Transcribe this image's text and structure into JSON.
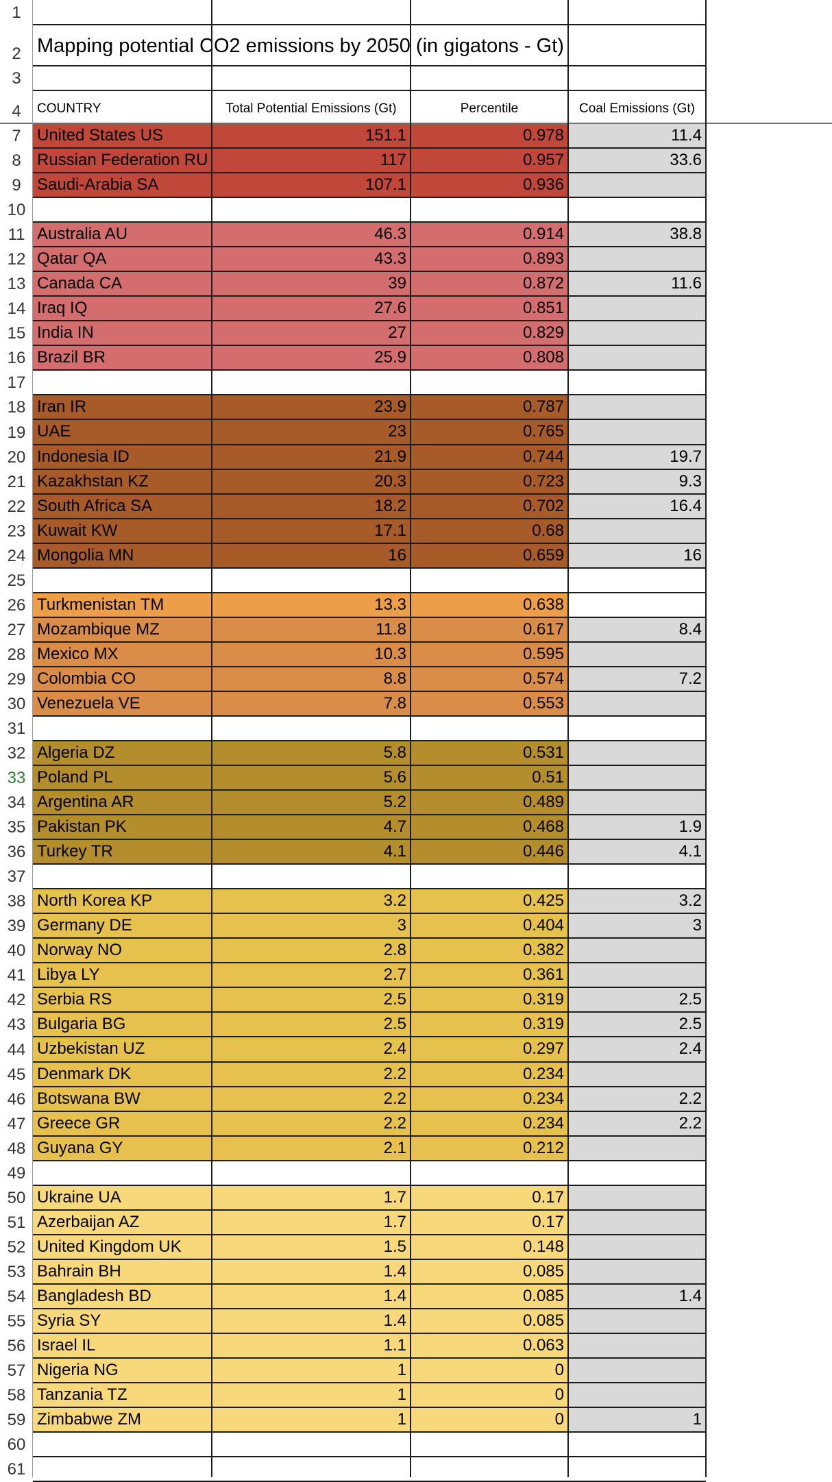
{
  "title": "Mapping potential CO2 emissions by 2050 (in gigatons - Gt)",
  "headers": {
    "country": "COUNTRY",
    "total": "Total Potential Emissions (Gt)",
    "percentile": "Percentile",
    "coal": "Coal Emissions (Gt)"
  },
  "row_numbers": {
    "r1": "1",
    "r2": "2",
    "r3": "3",
    "r4": "4"
  },
  "colors": {
    "tier1": "#c0473a",
    "tier2": "#d46e6e",
    "tier3": "#a65b28",
    "tier4": "#d98d48",
    "tier4_first": "#ec9e48",
    "tier5": "#b48e2c",
    "tier6": "#e6c14e",
    "tier7": "#f7d87a",
    "coal_bg": "#d9d9d9",
    "active_row_number": "#2e7d32"
  },
  "rows": [
    {
      "n": "7",
      "country": "United States US",
      "total": "151.1",
      "pct": "0.978",
      "coal": "11.4",
      "tier": "tier1"
    },
    {
      "n": "8",
      "country": "Russian Federation RU",
      "total": "117",
      "pct": "0.957",
      "coal": "33.6",
      "tier": "tier1"
    },
    {
      "n": "9",
      "country": "Saudi-Arabia SA",
      "total": "107.1",
      "pct": "0.936",
      "coal": "",
      "tier": "tier1"
    },
    {
      "n": "10",
      "blank": true
    },
    {
      "n": "11",
      "country": "Australia  AU",
      "total": "46.3",
      "pct": "0.914",
      "coal": "38.8",
      "tier": "tier2"
    },
    {
      "n": "12",
      "country": "Qatar QA",
      "total": "43.3",
      "pct": "0.893",
      "coal": "",
      "tier": "tier2"
    },
    {
      "n": "13",
      "country": "Canada CA",
      "total": "39",
      "pct": "0.872",
      "coal": "11.6",
      "tier": "tier2"
    },
    {
      "n": "14",
      "country": "Iraq IQ",
      "total": "27.6",
      "pct": "0.851",
      "coal": "",
      "tier": "tier2"
    },
    {
      "n": "15",
      "country": "India IN",
      "total": "27",
      "pct": "0.829",
      "coal": "",
      "tier": "tier2"
    },
    {
      "n": "16",
      "country": "Brazil BR",
      "total": "25.9",
      "pct": "0.808",
      "coal": "",
      "tier": "tier2"
    },
    {
      "n": "17",
      "blank": true
    },
    {
      "n": "18",
      "country": "Iran IR",
      "total": "23.9",
      "pct": "0.787",
      "coal": "",
      "tier": "tier3"
    },
    {
      "n": "19",
      "country": "UAE",
      "total": "23",
      "pct": "0.765",
      "coal": "",
      "tier": "tier3"
    },
    {
      "n": "20",
      "country": "Indonesia ID",
      "total": "21.9",
      "pct": "0.744",
      "coal": "19.7",
      "tier": "tier3"
    },
    {
      "n": "21",
      "country": "Kazakhstan  KZ",
      "total": "20.3",
      "pct": "0.723",
      "coal": "9.3",
      "tier": "tier3"
    },
    {
      "n": "22",
      "country": "South Africa SA",
      "total": "18.2",
      "pct": "0.702",
      "coal": "16.4",
      "tier": "tier3"
    },
    {
      "n": "23",
      "country": "Kuwait KW",
      "total": "17.1",
      "pct": "0.68",
      "coal": "",
      "tier": "tier3"
    },
    {
      "n": "24",
      "country": "Mongolia MN",
      "total": "16",
      "pct": "0.659",
      "coal": "16",
      "tier": "tier3"
    },
    {
      "n": "25",
      "blank": true
    },
    {
      "n": "26",
      "country": "Turkmenistan TM",
      "total": "13.3",
      "pct": "0.638",
      "coal": "",
      "tier": "tier4_first",
      "coal_white": true
    },
    {
      "n": "27",
      "country": "Mozambique MZ",
      "total": "11.8",
      "pct": "0.617",
      "coal": "8.4",
      "tier": "tier4"
    },
    {
      "n": "28",
      "country": "Mexico MX",
      "total": "10.3",
      "pct": "0.595",
      "coal": "",
      "tier": "tier4"
    },
    {
      "n": "29",
      "country": "Colombia CO",
      "total": "8.8",
      "pct": "0.574",
      "coal": "7.2",
      "tier": "tier4"
    },
    {
      "n": "30",
      "country": "Venezuela VE",
      "total": "7.8",
      "pct": "0.553",
      "coal": "",
      "tier": "tier4"
    },
    {
      "n": "31",
      "blank": true
    },
    {
      "n": "32",
      "country": "Algeria DZ",
      "total": "5.8",
      "pct": "0.531",
      "coal": "",
      "tier": "tier5"
    },
    {
      "n": "33",
      "country": "Poland PL",
      "total": "5.6",
      "pct": "0.51",
      "coal": "",
      "tier": "tier5",
      "active": true
    },
    {
      "n": "34",
      "country": "Argentina AR",
      "total": "5.2",
      "pct": "0.489",
      "coal": "",
      "tier": "tier5"
    },
    {
      "n": "35",
      "country": "Pakistan PK",
      "total": "4.7",
      "pct": "0.468",
      "coal": "1.9",
      "tier": "tier5"
    },
    {
      "n": "36",
      "country": "Turkey TR",
      "total": "4.1",
      "pct": "0.446",
      "coal": "4.1",
      "tier": "tier5"
    },
    {
      "n": "37",
      "blank": true
    },
    {
      "n": "38",
      "country": "North Korea KP",
      "total": "3.2",
      "pct": "0.425",
      "coal": "3.2",
      "tier": "tier6"
    },
    {
      "n": "39",
      "country": "Germany DE",
      "total": "3",
      "pct": "0.404",
      "coal": "3",
      "tier": "tier6"
    },
    {
      "n": "40",
      "country": "Norway NO",
      "total": "2.8",
      "pct": "0.382",
      "coal": "",
      "tier": "tier6"
    },
    {
      "n": "41",
      "country": "Libya LY",
      "total": "2.7",
      "pct": "0.361",
      "coal": "",
      "tier": "tier6"
    },
    {
      "n": "42",
      "country": "Serbia RS",
      "total": "2.5",
      "pct": "0.319",
      "coal": "2.5",
      "tier": "tier6"
    },
    {
      "n": "43",
      "country": "Bulgaria BG",
      "total": "2.5",
      "pct": "0.319",
      "coal": "2.5",
      "tier": "tier6"
    },
    {
      "n": "44",
      "country": "Uzbekistan UZ",
      "total": "2.4",
      "pct": "0.297",
      "coal": "2.4",
      "tier": "tier6"
    },
    {
      "n": "45",
      "country": "Denmark DK",
      "total": "2.2",
      "pct": "0.234",
      "coal": "",
      "tier": "tier6"
    },
    {
      "n": "46",
      "country": "Botswana BW",
      "total": "2.2",
      "pct": "0.234",
      "coal": "2.2",
      "tier": "tier6"
    },
    {
      "n": "47",
      "country": "Greece GR",
      "total": "2.2",
      "pct": "0.234",
      "coal": "2.2",
      "tier": "tier6"
    },
    {
      "n": "48",
      "country": "Guyana GY",
      "total": "2.1",
      "pct": "0.212",
      "coal": "",
      "tier": "tier6"
    },
    {
      "n": "49",
      "blank": true
    },
    {
      "n": "50",
      "country": "Ukraine UA",
      "total": "1.7",
      "pct": "0.17",
      "coal": "",
      "tier": "tier7"
    },
    {
      "n": "51",
      "country": "Azerbaijan AZ",
      "total": "1.7",
      "pct": "0.17",
      "coal": "",
      "tier": "tier7"
    },
    {
      "n": "52",
      "country": "United Kingdom UK",
      "total": "1.5",
      "pct": "0.148",
      "coal": "",
      "tier": "tier7"
    },
    {
      "n": "53",
      "country": "Bahrain BH",
      "total": "1.4",
      "pct": "0.085",
      "coal": "",
      "tier": "tier7"
    },
    {
      "n": "54",
      "country": "Bangladesh BD",
      "total": "1.4",
      "pct": "0.085",
      "coal": "1.4",
      "tier": "tier7"
    },
    {
      "n": "55",
      "country": "Syria SY",
      "total": "1.4",
      "pct": "0.085",
      "coal": "",
      "tier": "tier7"
    },
    {
      "n": "56",
      "country": "Israel IL",
      "total": "1.1",
      "pct": "0.063",
      "coal": "",
      "tier": "tier7"
    },
    {
      "n": "57",
      "country": "Nigeria NG",
      "total": "1",
      "pct": "0",
      "coal": "",
      "tier": "tier7"
    },
    {
      "n": "58",
      "country": "Tanzania TZ",
      "total": "1",
      "pct": "0",
      "coal": "",
      "tier": "tier7"
    },
    {
      "n": "59",
      "country": "Zimbabwe ZM",
      "total": "1",
      "pct": "0",
      "coal": "1",
      "tier": "tier7"
    },
    {
      "n": "60",
      "blank": true
    },
    {
      "n": "61",
      "blank": true
    }
  ]
}
